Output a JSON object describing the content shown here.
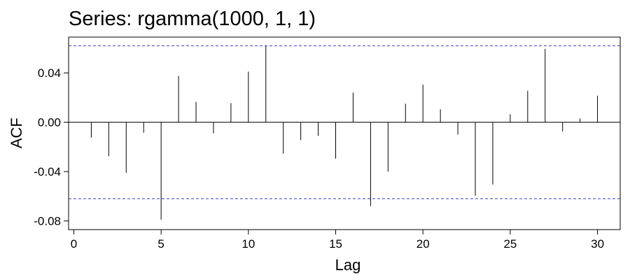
{
  "chart_data": {
    "type": "bar",
    "title": "Series: rgamma(1000, 1, 1)",
    "xlabel": "Lag",
    "ylabel": "ACF",
    "xlim": [
      -0.3,
      31.3
    ],
    "ylim": [
      -0.087,
      0.069
    ],
    "x_ticks": [
      0,
      5,
      10,
      15,
      20,
      25,
      30
    ],
    "y_ticks": [
      -0.08,
      -0.04,
      0.0,
      0.04
    ],
    "y_tick_labels": [
      "-0.08",
      "-0.04",
      "0.00",
      "0.04"
    ],
    "confidence_bound": 0.062,
    "confidence_color": "#3b3bc4",
    "bar_color": "#000000",
    "grid": false,
    "x": [
      1,
      2,
      3,
      4,
      5,
      6,
      7,
      8,
      9,
      10,
      11,
      12,
      13,
      14,
      15,
      16,
      17,
      18,
      19,
      20,
      21,
      22,
      23,
      24,
      25,
      26,
      27,
      28,
      29,
      30
    ],
    "values": [
      -0.0125,
      -0.0275,
      -0.041,
      -0.0085,
      -0.079,
      0.0375,
      0.0165,
      -0.009,
      0.0155,
      0.041,
      0.062,
      -0.0255,
      -0.0145,
      -0.011,
      -0.0295,
      0.024,
      -0.068,
      -0.04,
      0.015,
      0.0305,
      0.0105,
      -0.01,
      -0.0595,
      -0.0505,
      0.0065,
      0.0255,
      0.0595,
      -0.0075,
      0.003,
      0.0215
    ]
  }
}
